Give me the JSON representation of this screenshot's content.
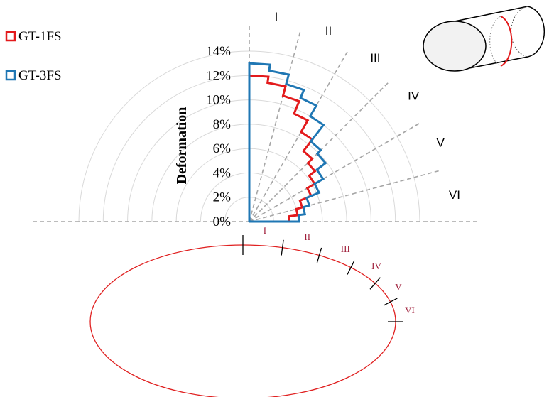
{
  "chart_data": {
    "type": "polar-step",
    "ylabel": "Deformation",
    "r_ticks": [
      "0%",
      "2%",
      "4%",
      "6%",
      "8%",
      "10%",
      "12%",
      "14%"
    ],
    "r_range": [
      0,
      0.14
    ],
    "grid": true,
    "legend_position": "top-left",
    "sector_labels": [
      "I",
      "II",
      "III",
      "IV",
      "V",
      "VI"
    ],
    "sector_boundaries_deg": [
      0,
      15,
      30,
      45,
      60,
      75,
      90
    ],
    "series": [
      {
        "name": "GT-1FS",
        "color": "#e31a1c",
        "angles_deg": [
          0,
          7.5,
          15,
          22.5,
          30,
          37.5,
          45,
          52.5,
          60,
          67.5,
          75,
          82.5,
          90
        ],
        "values": [
          0.12,
          0.115,
          0.107,
          0.096,
          0.085,
          0.073,
          0.068,
          0.062,
          0.055,
          0.045,
          0.04,
          0.033,
          0.03
        ]
      },
      {
        "name": "GT-3FS",
        "color": "#1f77b4",
        "angles_deg": [
          0,
          7.5,
          15,
          22.5,
          30,
          37.5,
          45,
          52.5,
          60,
          67.5,
          75,
          82.5,
          90
        ],
        "values": [
          0.13,
          0.125,
          0.117,
          0.11,
          0.1,
          0.083,
          0.079,
          0.07,
          0.062,
          0.051,
          0.046,
          0.041,
          0.038
        ]
      }
    ]
  },
  "ring_labels": [
    "I",
    "II",
    "III",
    "IV",
    "V",
    "VI"
  ],
  "colors": {
    "grid": "#d9d9d9",
    "dash": "#a6a6a6",
    "ring": "#e02020",
    "ring_label": "#a0203c"
  }
}
